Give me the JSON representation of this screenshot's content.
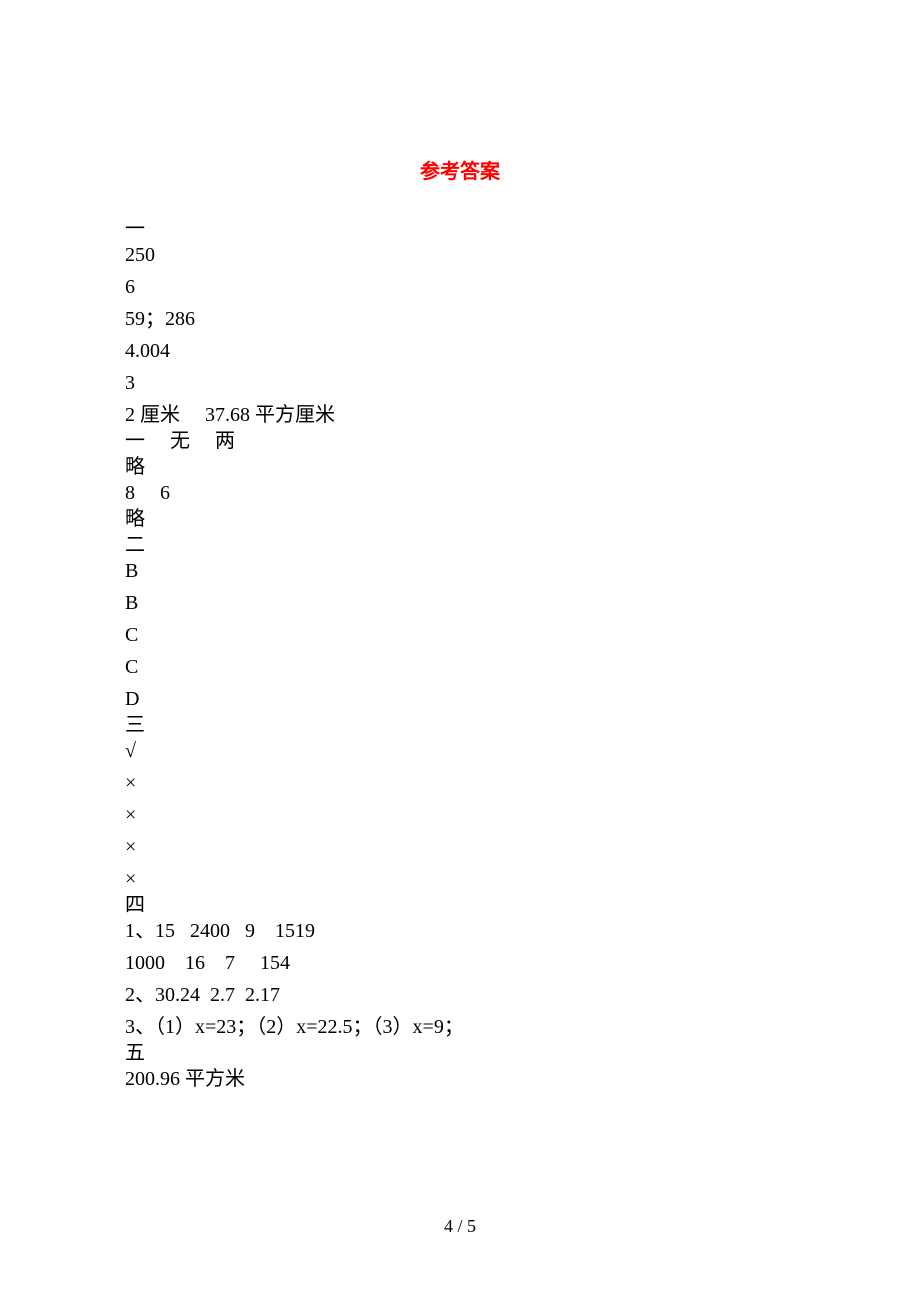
{
  "title": "参考答案",
  "section1": {
    "header": "一",
    "lines": [
      "250",
      "6",
      "59；286",
      "4.004",
      "3",
      "2 厘米     37.68 平方厘米",
      "一     无     两",
      "略",
      "8     6",
      "略"
    ]
  },
  "section2": {
    "header": "二",
    "lines": [
      "B",
      "B",
      "C",
      "C",
      "D"
    ]
  },
  "section3": {
    "header": "三",
    "lines": [
      "√",
      "×",
      "×",
      "×",
      "×"
    ]
  },
  "section4": {
    "header": "四",
    "lines": [
      "1、15   2400   9    1519",
      "1000    16    7     154",
      "2、30.24  2.7  2.17",
      "3、（1）x=23；（2）x=22.5；（3）x=9；"
    ]
  },
  "section5": {
    "header": "五",
    "lines": [
      "200.96 平方米"
    ]
  },
  "pageNumber": "4 / 5"
}
